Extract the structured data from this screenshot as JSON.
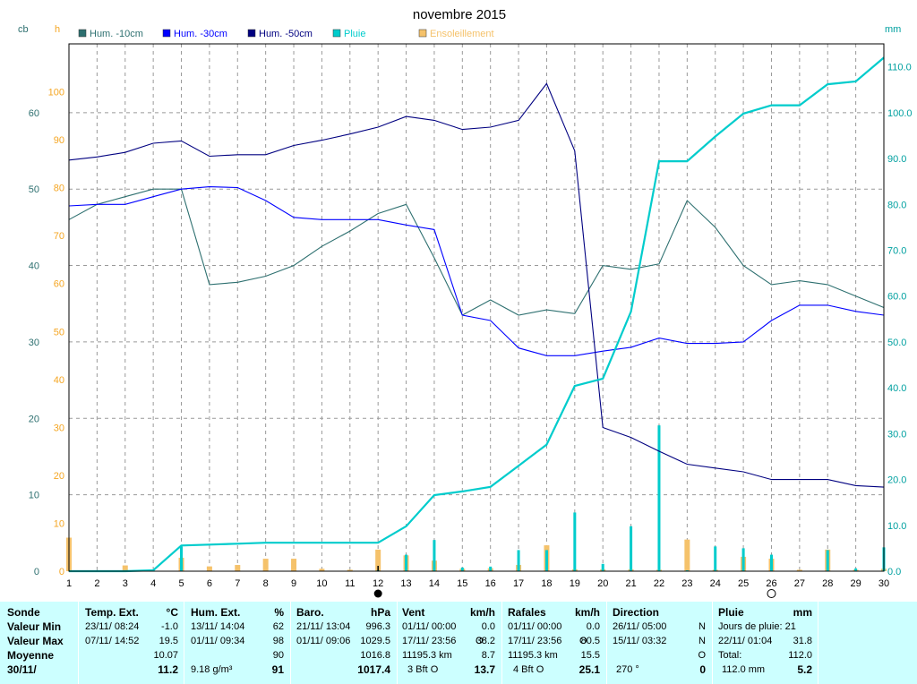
{
  "chart_data": {
    "type": "line",
    "title": "novembre 2015",
    "left_axis_unit": "cb",
    "left_axis_ticks": [
      "0",
      "10",
      "20",
      "30",
      "40",
      "50",
      "60"
    ],
    "left_axis_range": [
      0,
      69
    ],
    "sun_axis_unit": "h",
    "sun_axis_ticks": [
      "0",
      "10",
      "20",
      "30",
      "40",
      "50",
      "60",
      "70",
      "80",
      "90",
      "100"
    ],
    "sun_axis_range": [
      0,
      110
    ],
    "right_axis_unit": "mm",
    "right_axis_ticks": [
      "0.0",
      "10.0",
      "20.0",
      "30.0",
      "40.0",
      "50.0",
      "60.0",
      "70.0",
      "80.0",
      "90.0",
      "100.0",
      "110.0"
    ],
    "right_axis_range": [
      0,
      115
    ],
    "x_ticks": [
      "1",
      "2",
      "3",
      "4",
      "5",
      "6",
      "7",
      "8",
      "9",
      "10",
      "11",
      "12",
      "13",
      "14",
      "15",
      "16",
      "17",
      "18",
      "19",
      "20",
      "21",
      "22",
      "23",
      "24",
      "25",
      "26",
      "27",
      "28",
      "29",
      "30"
    ],
    "x_range": [
      1,
      30
    ],
    "grid": true,
    "series": [
      {
        "name": "Hum. -10cm",
        "color": "#2e7070",
        "axis": "left",
        "x": [
          1,
          2,
          3,
          4,
          5,
          6,
          7,
          8,
          9,
          10,
          11,
          12,
          13,
          14,
          15,
          16,
          17,
          18,
          19,
          20,
          21,
          22,
          23,
          24,
          25,
          26,
          27,
          28,
          29,
          30
        ],
        "values": [
          46,
          48,
          49,
          50,
          50,
          37.5,
          37.8,
          38.6,
          40,
          42.5,
          44.5,
          46.8,
          48,
          41,
          33.5,
          35.5,
          33.5,
          34.2,
          33.7,
          40,
          39.5,
          40.2,
          48.5,
          45,
          40,
          37.5,
          38,
          37.5,
          36,
          34.5
        ]
      },
      {
        "name": "Hum. -30cm",
        "color": "#0000ff",
        "axis": "left",
        "x": [
          1,
          2,
          3,
          4,
          5,
          6,
          7,
          8,
          9,
          10,
          11,
          12,
          13,
          14,
          15,
          16,
          17,
          18,
          19,
          20,
          21,
          22,
          23,
          24,
          25,
          26,
          27,
          28,
          29,
          30
        ],
        "values": [
          47.8,
          48,
          48,
          49,
          50,
          50.3,
          50.2,
          48.5,
          46.3,
          46,
          46,
          46,
          45.3,
          44.7,
          33.5,
          32.8,
          29.2,
          28.2,
          28.2,
          28.8,
          29.3,
          30.5,
          29.8,
          29.8,
          30,
          32.8,
          34.8,
          34.8,
          34,
          33.5
        ]
      },
      {
        "name": "Hum. -50cm",
        "color": "#000080",
        "axis": "left",
        "x": [
          1,
          2,
          3,
          4,
          5,
          6,
          7,
          8,
          9,
          10,
          11,
          12,
          13,
          14,
          15,
          16,
          17,
          18,
          19,
          20,
          21,
          22,
          23,
          24,
          25,
          26,
          27,
          28,
          29,
          30
        ],
        "values": [
          53.8,
          54.2,
          54.8,
          56,
          56.3,
          54.3,
          54.5,
          54.5,
          55.7,
          56.4,
          57.2,
          58.1,
          59.5,
          59,
          57.8,
          58.1,
          59,
          63.8,
          55,
          18.8,
          17.5,
          15.7,
          14,
          13.5,
          13,
          12,
          12,
          12,
          11.2,
          11
        ]
      },
      {
        "name": "Pluie",
        "color": "#00cccc",
        "axis": "right",
        "x": [
          1,
          2,
          3,
          4,
          5,
          6,
          7,
          8,
          9,
          10,
          11,
          12,
          13,
          14,
          15,
          16,
          17,
          18,
          19,
          20,
          21,
          22,
          23,
          24,
          25,
          26,
          27,
          28,
          29,
          30
        ],
        "values": [
          0,
          0,
          0,
          0.2,
          5.6,
          5.8,
          6,
          6.2,
          6.2,
          6.2,
          6.2,
          6.2,
          9.8,
          16.6,
          17.4,
          18.4,
          23,
          27.6,
          40.4,
          42,
          56.6,
          89.4,
          89.4,
          94.8,
          99.8,
          101.6,
          101.6,
          106.2,
          106.8,
          112
        ]
      }
    ],
    "bars": [
      {
        "name": "Ensoleillement",
        "color": "#f5c26b",
        "axis": "sun",
        "x": [
          1,
          3,
          5,
          6,
          7,
          8,
          9,
          10,
          11,
          12,
          13,
          14,
          15,
          16,
          17,
          18,
          19,
          20,
          21,
          22,
          23,
          24,
          25,
          26,
          27,
          28,
          29,
          30
        ],
        "values": [
          7,
          1.2,
          2.8,
          1,
          1.3,
          2.6,
          2.6,
          0.5,
          0.3,
          4.5,
          3.3,
          2.2,
          0.5,
          0.6,
          1.3,
          5.4,
          0.4,
          0.4,
          0.4,
          0.3,
          6.6,
          0.3,
          3,
          2.6,
          0.3,
          4.5,
          0.3,
          0.5
        ]
      },
      {
        "name": "Pluie",
        "color": "#00cccc",
        "axis": "right",
        "x": [
          4,
          5,
          12,
          13,
          14,
          15,
          16,
          17,
          18,
          19,
          20,
          21,
          22,
          23,
          24,
          25,
          26,
          28,
          29,
          30
        ],
        "values": [
          0.2,
          5.4,
          0.2,
          3.6,
          6.8,
          0.8,
          1,
          4.6,
          4.6,
          12.8,
          1.6,
          9.8,
          31.8,
          0.2,
          5.4,
          5,
          3.6,
          4.6,
          0.6,
          5.2
        ]
      }
    ],
    "markers": {
      "line_day": 12,
      "full_moon_day": 26,
      "new_moon_day": 12
    }
  },
  "colors": {
    "left_axis": "#2e7070",
    "sun_axis": "#f5a623",
    "right_axis": "#00a0a0",
    "panel_bg": "#ccffff"
  },
  "panel": {
    "row_labels": {
      "title": "Sonde",
      "min": "Valeur Min",
      "max": "Valeur Max",
      "avg": "Moyenne",
      "date": "30/11/"
    },
    "temp": {
      "header": "Temp. Ext.",
      "unit": "°C",
      "min_date": "23/11/  08:24",
      "min_val": "-1.0",
      "max_date": "07/11/  14:52",
      "max_val": "19.5",
      "avg": "10.07",
      "current": "11.2"
    },
    "hum": {
      "header": "Hum. Ext.",
      "unit": "%",
      "min_date": "13/11/  14:04",
      "min_val": "62",
      "max_date": "01/11/  09:34",
      "max_val": "98",
      "avg": "90",
      "abs": "9.18 g/m³",
      "current": "91"
    },
    "baro": {
      "header": "Baro.",
      "unit": "hPa",
      "min_date": "21/11/  13:04",
      "min_val": "996.3",
      "max_date": "01/11/  09:06",
      "max_val": "1029.5",
      "avg": "1016.8",
      "current": "1017.4"
    },
    "vent": {
      "header": "Vent",
      "unit": "km/h",
      "min_date": "01/11/  00:00",
      "min_val": "0.0",
      "max_date": "17/11/  23:56",
      "max_dir": "O",
      "max_val": "38.2",
      "total_km": "11195.3 km",
      "avg": "8.7",
      "bft": "3 Bft",
      "bft_dir": "O",
      "current": "13.7"
    },
    "rafales": {
      "header": "Rafales",
      "unit": "km/h",
      "min_date": "01/11/  00:00",
      "min_val": "0.0",
      "max_date": "17/11/  23:56",
      "max_dir": "O",
      "max_val": "80.5",
      "total_km": "11195.3 km",
      "avg": "15.5",
      "bft": "4 Bft",
      "bft_dir": "O",
      "current": "25.1"
    },
    "direction": {
      "header": "Direction",
      "min_date": "26/11/  05:00",
      "min_dir": "N",
      "max_date": "15/11/  03:32",
      "max_dir": "N",
      "avg": "O",
      "current_deg": "270 °",
      "current": "0"
    },
    "pluie": {
      "header": "Pluie",
      "unit": "mm",
      "rain_days": "Jours de pluie: 21",
      "max_date": "22/11/  01:04",
      "max_val": "31.8",
      "total_label": "Total:",
      "total_val": "112.0",
      "current_total": "112.0 mm",
      "current": "5.2"
    }
  }
}
